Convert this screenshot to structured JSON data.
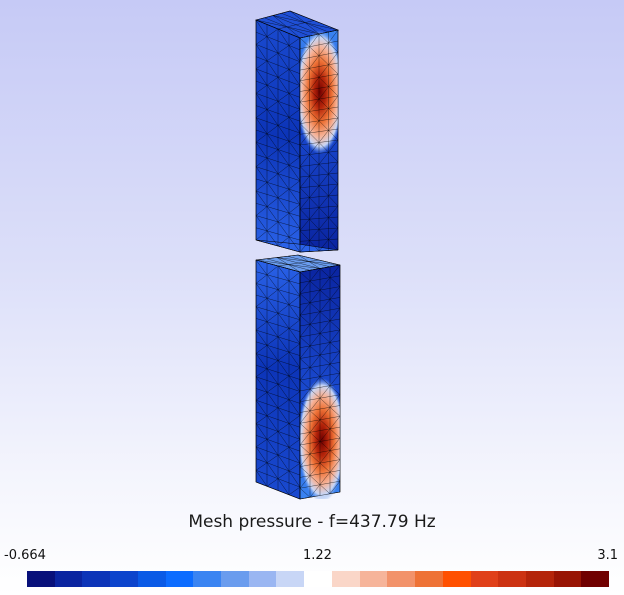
{
  "title": "Mesh pressure - f=437.79 Hz",
  "colorbar": {
    "min_label": "-0.664",
    "mid_label": "1.22",
    "max_label": "3.1",
    "swatches": [
      "#08107a",
      "#0a24a0",
      "#0c34b8",
      "#0c44cc",
      "#0a5ae6",
      "#0c6cff",
      "#3a84f2",
      "#6a9cee",
      "#9ab6f2",
      "#c8d6f6",
      "#ffffff",
      "#fad6c8",
      "#f6b49a",
      "#f2926a",
      "#ee7236",
      "#ff5000",
      "#e0401a",
      "#cc3212",
      "#b4240a",
      "#981404",
      "#700000"
    ]
  },
  "mesh": {
    "pressure_range": [
      -0.664,
      3.1
    ]
  }
}
